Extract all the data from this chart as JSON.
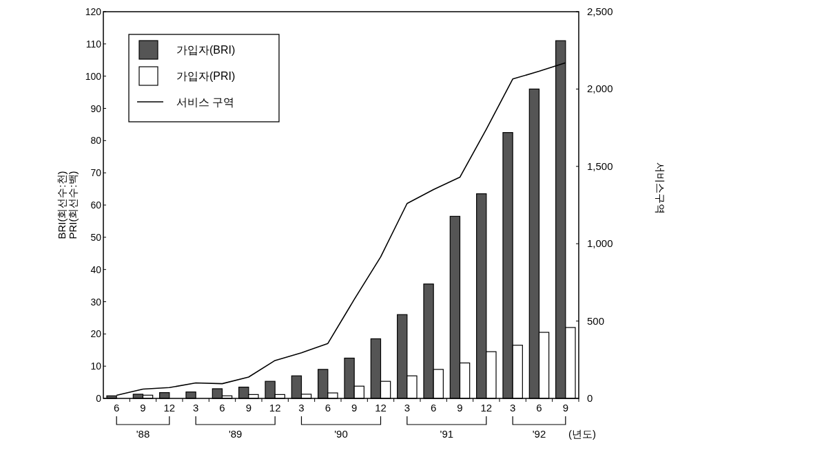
{
  "chart_data": {
    "type": "bar",
    "categories": [
      "6",
      "9",
      "12",
      "3",
      "6",
      "9",
      "12",
      "3",
      "6",
      "9",
      "12",
      "3",
      "6",
      "9",
      "12",
      "3",
      "6",
      "9"
    ],
    "series": [
      {
        "name": "가입자(BRI)",
        "color": "#555555",
        "values": [
          0.8,
          1.3,
          1.8,
          2,
          3,
          3.5,
          5.3,
          7,
          9,
          12.5,
          18.5,
          26,
          35.5,
          56.5,
          63.5,
          82.5,
          96,
          111
        ]
      },
      {
        "name": "가입자(PRI)",
        "color": "#ffffff",
        "values": [
          null,
          1,
          null,
          0,
          0.8,
          1.2,
          1.2,
          1.3,
          1.7,
          3.8,
          5.3,
          7,
          9,
          11,
          14.5,
          16.5,
          20.5,
          22
        ]
      },
      {
        "name": "서비스 구역",
        "type": "line",
        "axis": "y2",
        "color": "#000000",
        "values": [
          20,
          60,
          70,
          100,
          95,
          138,
          245,
          295,
          355,
          640,
          915,
          1260,
          1350,
          1430,
          1740,
          2065,
          2115,
          2170
        ]
      }
    ],
    "ylabel": "BRI(회선수:천)\nPRI(회선수:백)",
    "y2label": "서비스구역",
    "ylim": [
      0,
      120
    ],
    "yticks": [
      0,
      10,
      20,
      30,
      40,
      50,
      60,
      70,
      80,
      90,
      100,
      110,
      120
    ],
    "y2lim": [
      0,
      2500
    ],
    "y2ticks": [
      0,
      {
        "value": 500,
        "label": "500"
      },
      {
        "value": 1000,
        "label": "1,000"
      },
      {
        "value": 1500,
        "label": "1,500"
      },
      {
        "value": 2000,
        "label": "2,000"
      },
      {
        "value": 2500,
        "label": "2,500"
      }
    ],
    "annotations": [
      "'88",
      "'89",
      "'90",
      "'91",
      "'92",
      "(년도)"
    ],
    "legend": "top left",
    "grid": false
  }
}
